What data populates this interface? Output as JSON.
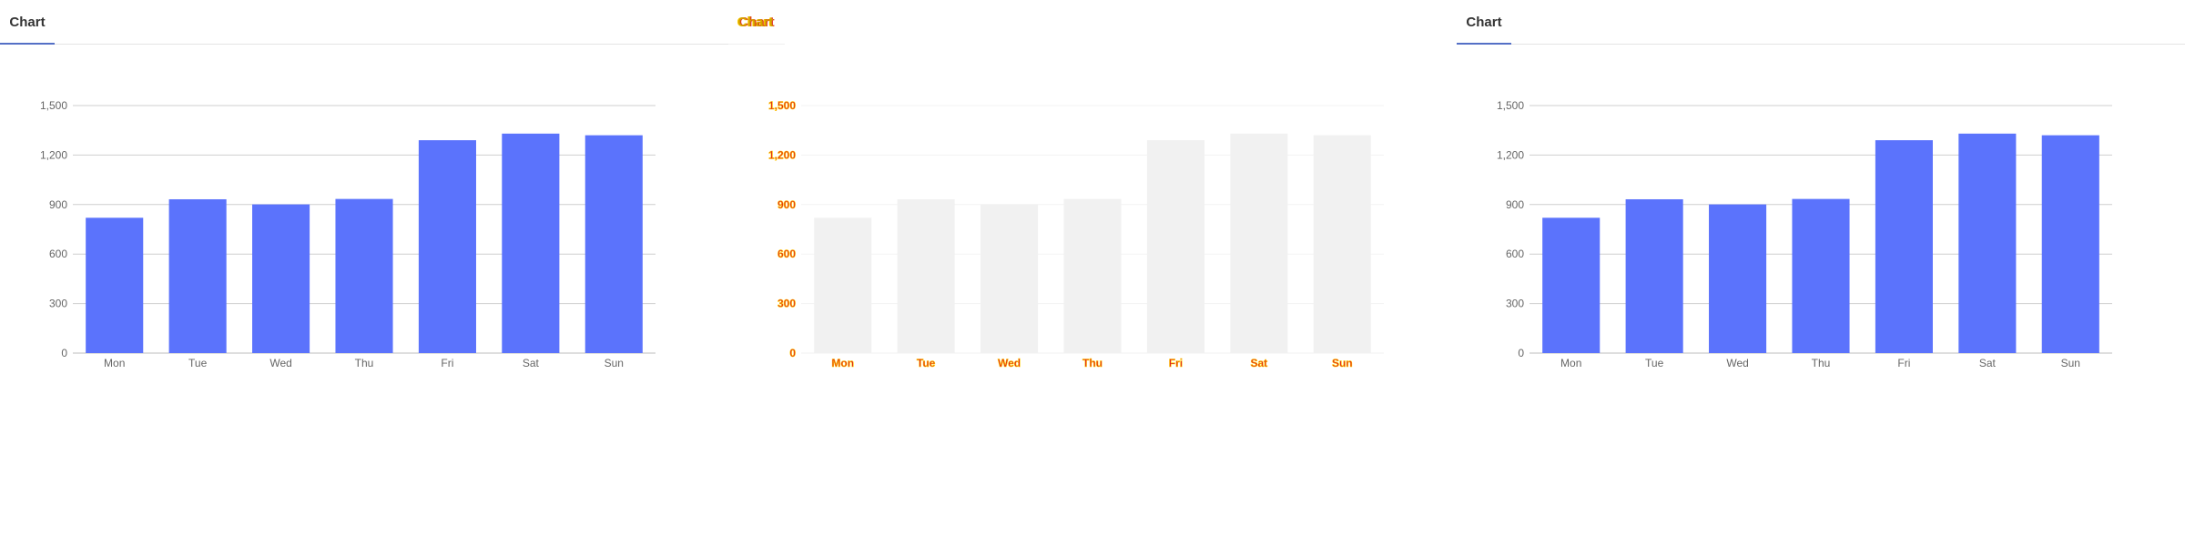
{
  "tab": {
    "label": "Chart"
  },
  "colors": {
    "bar": "#5b73fc",
    "grid": "#cfcfcf",
    "axis_text": "#666666",
    "ghost_bar": "#f1f1f1",
    "diff_red": "#e02020",
    "diff_yellow": "#ffd000"
  },
  "chart_data": {
    "type": "bar",
    "categories": [
      "Mon",
      "Tue",
      "Wed",
      "Thu",
      "Fri",
      "Sat",
      "Sun"
    ],
    "series": [
      {
        "values": [
          820,
          932,
          901,
          934,
          1290,
          1330,
          1320
        ]
      }
    ],
    "xlabel": "",
    "ylabel": "",
    "ylim": [
      0,
      1500
    ],
    "yticks": [
      0,
      300,
      600,
      900,
      1200,
      1500
    ],
    "ytick_labels": [
      "0",
      "300",
      "600",
      "900",
      "1,200",
      "1,500"
    ],
    "grid": true
  }
}
